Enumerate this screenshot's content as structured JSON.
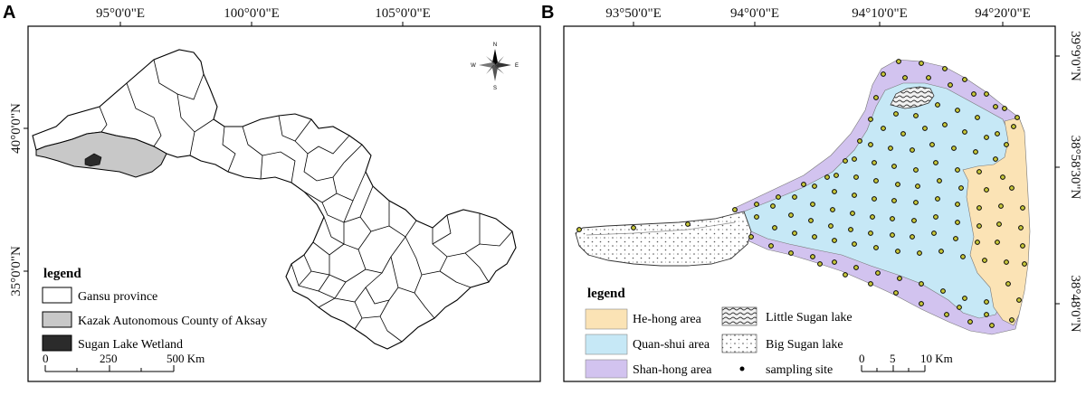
{
  "panel_a": {
    "letter": "A",
    "top_ticks": [
      "95°0'0\"E",
      "100°0'0\"E",
      "105°0'0\"E"
    ],
    "left_ticks": [
      "40°0'0\"N",
      "35°0'0\"N"
    ],
    "legend": {
      "title": "legend",
      "items": [
        {
          "label": "Gansu province",
          "color": "#ffffff"
        },
        {
          "label": "Kazak Autonomous County of Aksay",
          "color": "#c8c8c8"
        },
        {
          "label": "Sugan Lake Wetland",
          "color": "#2b2b2b"
        }
      ]
    },
    "scale": {
      "labels": [
        "0",
        "250",
        "500 Km"
      ]
    },
    "compass": {
      "n": "N",
      "s": "S",
      "e": "E",
      "w": "W"
    }
  },
  "panel_b": {
    "letter": "B",
    "top_ticks": [
      "93°50'0\"E",
      "94°0'0\"E",
      "94°10'0\"E",
      "94°20'0\"E"
    ],
    "right_ticks": [
      "39°9'0\"N",
      "38°58'30\"N",
      "38°48'0\"N"
    ],
    "legend": {
      "title": "legend",
      "items": [
        {
          "label": "He-hong area",
          "color": "#fbe3b5"
        },
        {
          "label": "Quan-shui area",
          "color": "#c6e8f6"
        },
        {
          "label": "Shan-hong area",
          "color": "#d2c3ef"
        },
        {
          "label": "Little Sugan lake",
          "pattern": "little"
        },
        {
          "label": "Big Sugan lake",
          "pattern": "big"
        },
        {
          "label": "sampling site",
          "marker": "dot"
        }
      ]
    },
    "scale": {
      "labels": [
        "0",
        "5",
        "10 Km"
      ]
    },
    "colors": {
      "hehong": "#fbe3b5",
      "quanshui": "#c6e8f6",
      "shanhong": "#d2c3ef",
      "site_fill": "#c9c93a"
    }
  }
}
